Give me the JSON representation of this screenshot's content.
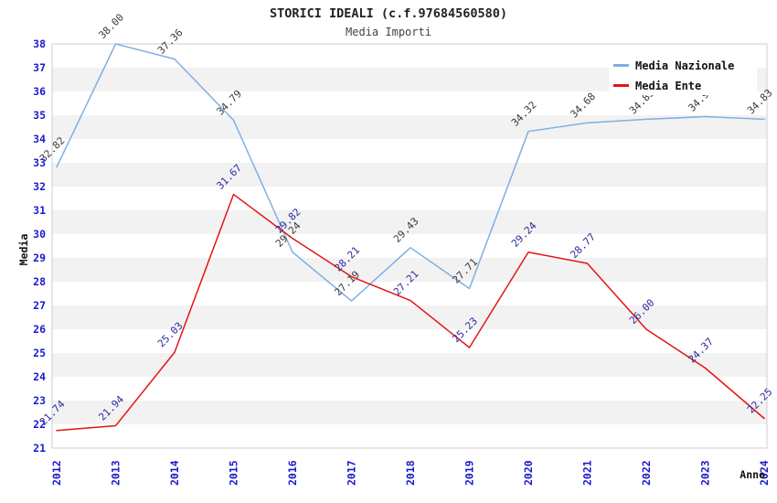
{
  "header": {
    "title": "STORICI IDEALI (c.f.97684560580)",
    "subtitle": "Media Importi"
  },
  "chart_data": {
    "type": "line",
    "x": [
      "2012",
      "2013",
      "2014",
      "2015",
      "2016",
      "2017",
      "2018",
      "2019",
      "2020",
      "2021",
      "2022",
      "2023",
      "2024"
    ],
    "series": [
      {
        "name": "Media Nazionale",
        "color": "#7eb0e2",
        "label_color": "#3a3a3a",
        "values": [
          32.82,
          38.0,
          37.36,
          34.79,
          29.24,
          27.19,
          29.43,
          27.71,
          34.32,
          34.68,
          34.83,
          34.94,
          34.83
        ]
      },
      {
        "name": "Media Ente",
        "color": "#e51413",
        "label_color": "#2a2aa0",
        "values": [
          21.74,
          21.94,
          25.03,
          31.67,
          29.82,
          28.21,
          27.21,
          25.23,
          29.24,
          28.77,
          26.0,
          24.37,
          22.25
        ]
      }
    ],
    "xlabel": "Anno",
    "ylabel": "Media",
    "ylim": [
      21,
      38
    ],
    "y_tick_step": 1,
    "tick_color": "#1a1acd",
    "band_colors": [
      "#ffffff",
      "#f2f2f2"
    ],
    "plot_border_color": "#cccccc",
    "legend_position": "top-right",
    "grid": "horizontal-bands",
    "data_labels": "rotated-45"
  }
}
